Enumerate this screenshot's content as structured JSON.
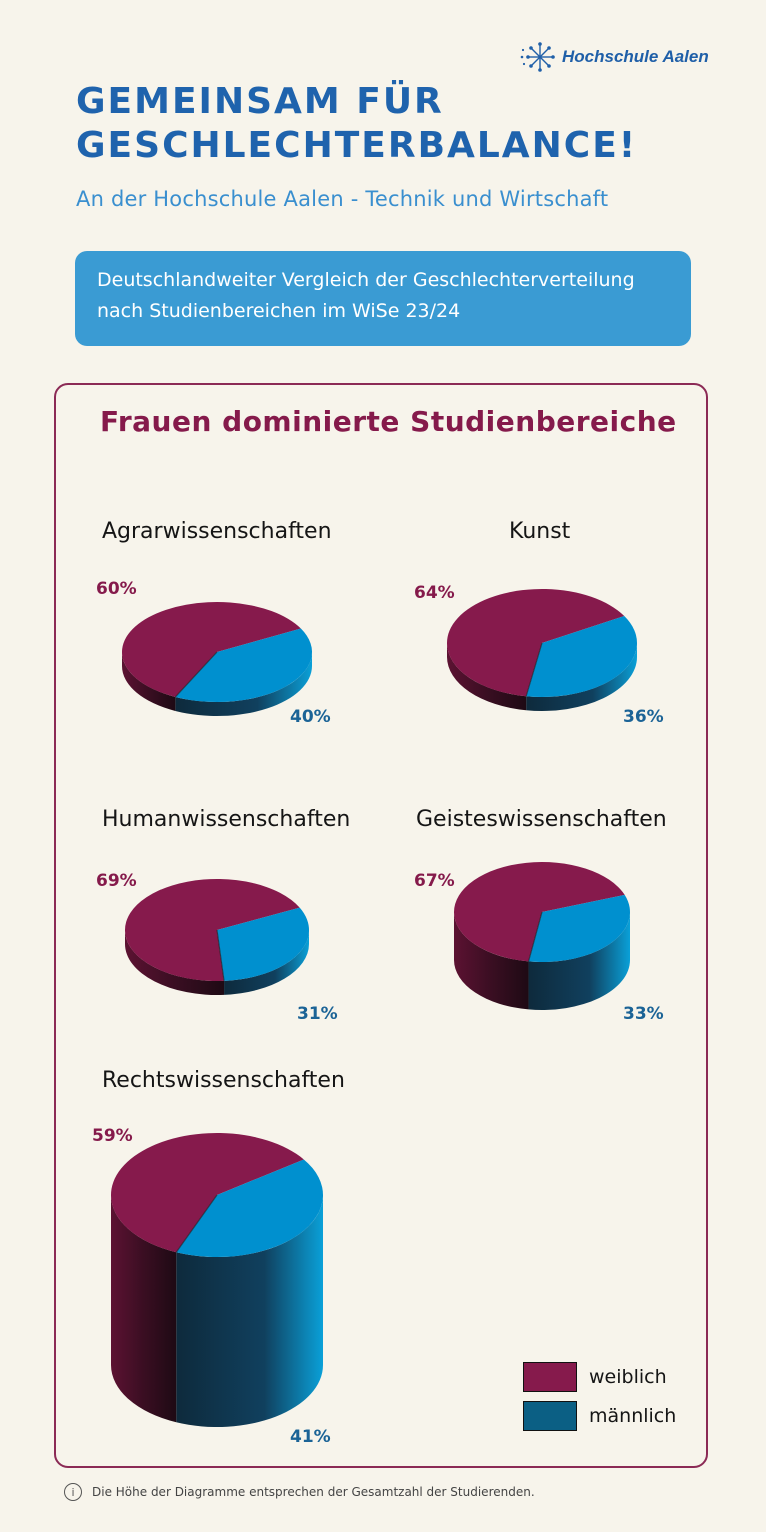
{
  "header": {
    "logo_text": "Hochschule Aalen",
    "title": "GEMEINSAM FÜR GESCHLECHTERBALANCE!",
    "subtitle": "An der Hochschule Aalen - Technik und Wirtschaft"
  },
  "banner": {
    "text": "Deutschlandweiter Vergleich der Geschlechterverteilung nach Studienbereichen im WiSe 23/24"
  },
  "section": {
    "title": "Frauen dominierte Studienbereiche"
  },
  "colors": {
    "weiblich": "#861a4c",
    "maennlich": "#0090cf",
    "legend_maennlich": "#0b5f84",
    "title_blue": "#1f63ad",
    "card_border": "#8b2a55"
  },
  "legend": {
    "weiblich": "weiblich",
    "maennlich": "männlich"
  },
  "footnote": {
    "icon": "info-icon",
    "text": "Die Höhe der Diagramme entsprechen der Gesamtzahl der Studierenden."
  },
  "chart_data": [
    {
      "type": "pie",
      "title": "Agrarwissenschaften",
      "categories": [
        "weiblich",
        "männlich"
      ],
      "values": [
        60,
        40
      ],
      "labels": [
        "60%",
        "40%"
      ],
      "relative_height": "small"
    },
    {
      "type": "pie",
      "title": "Kunst",
      "categories": [
        "weiblich",
        "männlich"
      ],
      "values": [
        64,
        36
      ],
      "labels": [
        "64%",
        "36%"
      ],
      "relative_height": "small"
    },
    {
      "type": "pie",
      "title": "Humanwissenschaften",
      "categories": [
        "weiblich",
        "männlich"
      ],
      "values": [
        69,
        31
      ],
      "labels": [
        "69%",
        "31%"
      ],
      "relative_height": "small"
    },
    {
      "type": "pie",
      "title": "Geisteswissenschaften",
      "categories": [
        "weiblich",
        "männlich"
      ],
      "values": [
        67,
        33
      ],
      "labels": [
        "67%",
        "33%"
      ],
      "relative_height": "medium"
    },
    {
      "type": "pie",
      "title": "Rechtswissenschaften",
      "categories": [
        "weiblich",
        "männlich"
      ],
      "values": [
        59,
        41
      ],
      "labels": [
        "59%",
        "41%"
      ],
      "relative_height": "large"
    }
  ]
}
